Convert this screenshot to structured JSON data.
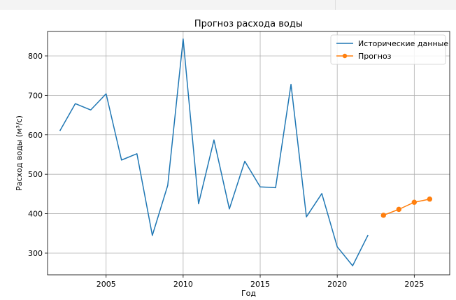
{
  "chart_data": {
    "type": "line",
    "title": "Прогноз расхода воды",
    "xlabel": "Год",
    "ylabel": "Расход воды (м³/с)",
    "xlim": [
      2001.2,
      2027.3
    ],
    "ylim": [
      245,
      862
    ],
    "xticks": [
      2005,
      2010,
      2015,
      2020,
      2025
    ],
    "yticks": [
      300,
      400,
      500,
      600,
      700,
      800
    ],
    "grid": true,
    "legend_position": "top-right",
    "series": [
      {
        "name": "Исторические данные",
        "color": "#1f77b4",
        "marker": "none",
        "x": [
          2002,
          2003,
          2004,
          2005,
          2006,
          2007,
          2008,
          2009,
          2010,
          2011,
          2012,
          2013,
          2014,
          2015,
          2016,
          2017,
          2018,
          2019,
          2020,
          2021,
          2022
        ],
        "y": [
          610,
          679,
          663,
          704,
          536,
          552,
          345,
          472,
          843,
          425,
          587,
          412,
          533,
          468,
          466,
          728,
          392,
          451,
          316,
          268,
          346
        ]
      },
      {
        "name": "Прогноз",
        "color": "#ff7f0e",
        "marker": "circle",
        "x": [
          2023,
          2024,
          2025,
          2026
        ],
        "y": [
          396,
          411,
          429,
          437
        ]
      }
    ]
  }
}
